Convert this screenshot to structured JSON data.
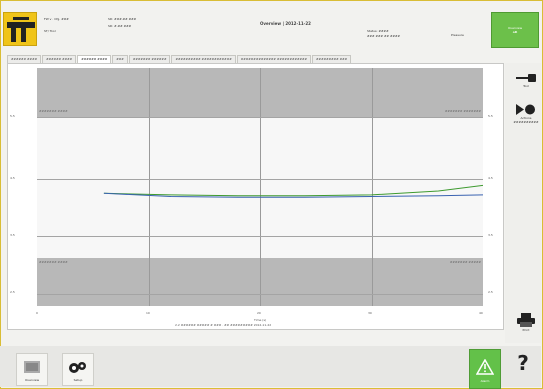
{
  "header": {
    "logo_text": "ATLAS COPCO",
    "hdr_left_1": "FW v · Cfg. ###",
    "hdr_left_2": "ST/ Tool",
    "hdr_mid_1": "SD: ###.## ###",
    "hdr_mid_2": "SD: #.## ###",
    "title": "Overview | 2012-11-22",
    "status_line_1": "Status: ####",
    "status_line_2": "### ### ## ####",
    "status_tag": "Pressure",
    "status_box_label": "Overview",
    "status_box_value": "oK"
  },
  "tabs": [
    {
      "label": "###### ####"
    },
    {
      "label": "###### ####"
    },
    {
      "label": "###### ####"
    },
    {
      "label": "###"
    },
    {
      "label": "####### ######"
    },
    {
      "label": "########## ############"
    },
    {
      "label": "############## ############"
    },
    {
      "label": "######### ###"
    }
  ],
  "plot": {
    "y_left_labels": [
      "5.5",
      "4.5",
      "3.5",
      "2.5"
    ],
    "y_right_labels": [
      "5.5",
      "4.5",
      "3.5",
      "2.5"
    ],
    "x_labels": [
      "0",
      "10",
      "20",
      "30",
      "40"
    ],
    "x_title": "Time (s)",
    "footer": "2.2 ###### ##### # ### · ## ######### 2012-11-22",
    "top_left_note": "####### ####",
    "top_right_note": "####### #######",
    "bottom_left_note": "####### ####",
    "bottom_right_note": "####### #####"
  },
  "chart_data": {
    "type": "line",
    "x": [
      6,
      12,
      18,
      24,
      30,
      36,
      40
    ],
    "series": [
      {
        "values": [
          3.92,
          3.9,
          3.89,
          3.89,
          3.9,
          3.95,
          4.02
        ]
      },
      {
        "values": [
          3.92,
          3.88,
          3.87,
          3.87,
          3.88,
          3.89,
          3.9
        ]
      }
    ],
    "xlim": [
      0,
      40
    ],
    "ylim": [
      2.5,
      5.5
    ],
    "grid": true,
    "band_color": "#b8b8b8",
    "series_colors": [
      "#3e9a2f",
      "#3a63b1"
    ]
  },
  "right_panel": {
    "tool_label": "Tool",
    "next_label": "Actions ##########",
    "print_label": "Print"
  },
  "bottom": {
    "btn1_label": "Overview",
    "btn2_label": "Setup",
    "alert_label": "Alarm",
    "help_label": "?"
  },
  "colors": {
    "accent": "#f0c419",
    "status_ok": "#6cc04a"
  }
}
